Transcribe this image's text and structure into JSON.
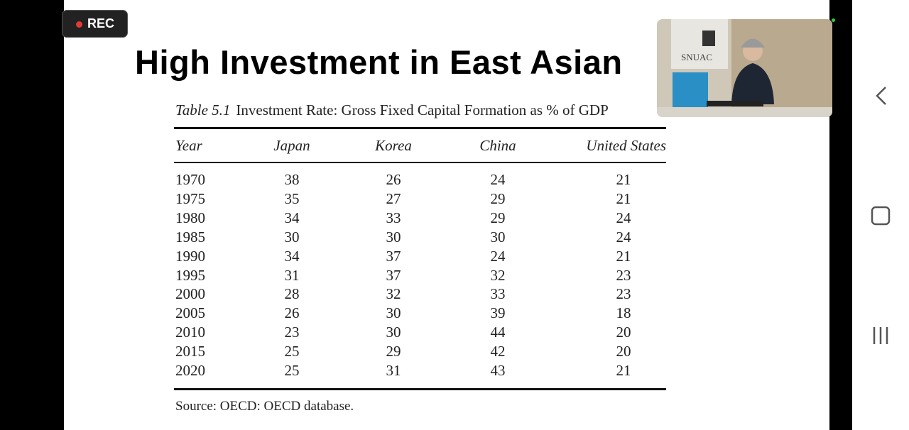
{
  "recording": {
    "label": "REC"
  },
  "slide": {
    "title": "High Investment in East Asian",
    "table": {
      "label": "Table 5.1",
      "caption": "Investment Rate: Gross Fixed Capital Formation as % of GDP",
      "columns": [
        "Year",
        "Japan",
        "Korea",
        "China",
        "United States"
      ],
      "rows": [
        [
          1970,
          38,
          26,
          24,
          21
        ],
        [
          1975,
          35,
          27,
          29,
          21
        ],
        [
          1980,
          34,
          33,
          29,
          24
        ],
        [
          1985,
          30,
          30,
          30,
          24
        ],
        [
          1990,
          34,
          37,
          24,
          21
        ],
        [
          1995,
          31,
          37,
          32,
          23
        ],
        [
          2000,
          28,
          32,
          33,
          23
        ],
        [
          2005,
          26,
          30,
          39,
          18
        ],
        [
          2010,
          23,
          30,
          44,
          20
        ],
        [
          2015,
          25,
          29,
          42,
          20
        ],
        [
          2020,
          25,
          31,
          43,
          21
        ]
      ],
      "source": "Source: OECD: OECD database."
    }
  },
  "video": {
    "logo_text": "SNUAC"
  }
}
